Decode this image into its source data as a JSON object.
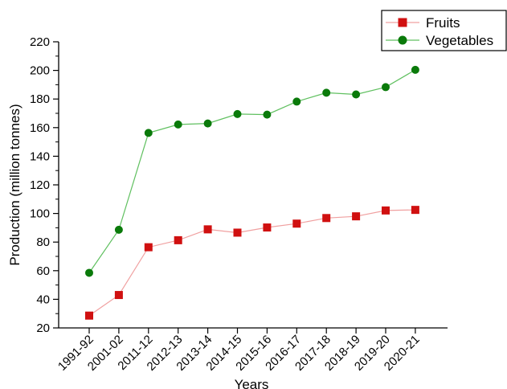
{
  "chart_data": {
    "type": "line",
    "categories": [
      "1991-92",
      "2001-02",
      "2011-12",
      "2012-13",
      "2013-14",
      "2014-15",
      "2015-16",
      "2016-17",
      "2017-18",
      "2018-19",
      "2019-20",
      "2020-21"
    ],
    "series": [
      {
        "name": "Fruits",
        "values": [
          28.6,
          43.0,
          76.4,
          81.3,
          88.9,
          86.6,
          90.2,
          92.9,
          96.8,
          98.0,
          102.1,
          102.5
        ],
        "color": "#d01010",
        "line_color": "#f0a0a0",
        "marker": "square"
      },
      {
        "name": "Vegetables",
        "values": [
          58.5,
          88.6,
          156.3,
          162.2,
          162.9,
          169.5,
          169.1,
          178.2,
          184.4,
          183.2,
          188.3,
          200.4
        ],
        "color": "#0a7a0a",
        "line_color": "#60c060",
        "marker": "circle"
      }
    ],
    "xlabel": "Years",
    "ylabel": "Production (million tonnes)",
    "ylim": [
      20,
      220
    ],
    "yticks": [
      20,
      40,
      60,
      80,
      100,
      120,
      140,
      160,
      180,
      200,
      220
    ],
    "grid": false,
    "legend_position": "top-right"
  }
}
